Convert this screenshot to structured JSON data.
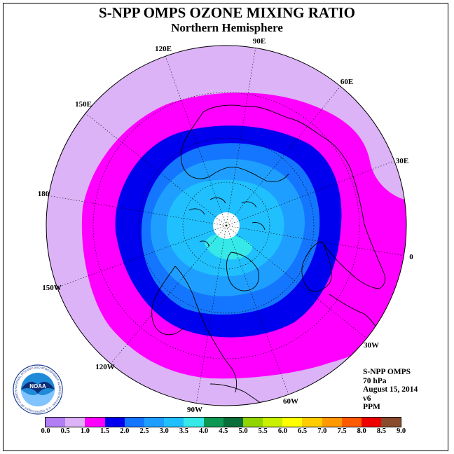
{
  "header": {
    "title": "S-NPP OMPS OZONE MIXING RATIO",
    "subtitle": "Northern Hemisphere"
  },
  "map": {
    "projection": "north polar stereographic",
    "longitude_labels": [
      "90E",
      "60E",
      "30E",
      "0",
      "30W",
      "60W",
      "90W",
      "120W",
      "150W",
      "180",
      "150E",
      "120E"
    ],
    "contour_colors": {
      "outer_band": "#dcb3f7",
      "band_1_0": "#ff00ff",
      "band_1_5": "#0000ee",
      "band_2_0": "#1476ff",
      "band_2_5": "#1e9fff",
      "band_3_0": "#20c0ff",
      "band_3_5": "#36e8e8",
      "polar_gap": "#ffffff"
    }
  },
  "info": {
    "instrument": "S-NPP OMPS",
    "level": "70 hPa",
    "date": "August 15, 2014",
    "version": "v6",
    "units": "PPM"
  },
  "colorbar": {
    "colors": [
      "#b27ef5",
      "#dcb3f7",
      "#ff00ff",
      "#0000ee",
      "#1476ff",
      "#1e9fff",
      "#20c0ff",
      "#36e8e8",
      "#0d9955",
      "#096e3a",
      "#92d400",
      "#c8f000",
      "#ffff00",
      "#ffcc00",
      "#ff9900",
      "#ff5a00",
      "#ee0000",
      "#8a4a2e"
    ],
    "labels": [
      "0.0",
      "0.5",
      "1.0",
      "1.5",
      "2.0",
      "2.5",
      "3.0",
      "3.5",
      "4.0",
      "4.5",
      "5.0",
      "5.5",
      "6.0",
      "6.5",
      "7.0",
      "7.5",
      "8.0",
      "8.5",
      "9.0"
    ]
  },
  "logo": {
    "text": "NOAA",
    "ring_text": "NATIONAL OCEANIC AND ATMOSPHERIC ADMINISTRATION - U.S. DEPARTMENT OF COMMERCE"
  }
}
